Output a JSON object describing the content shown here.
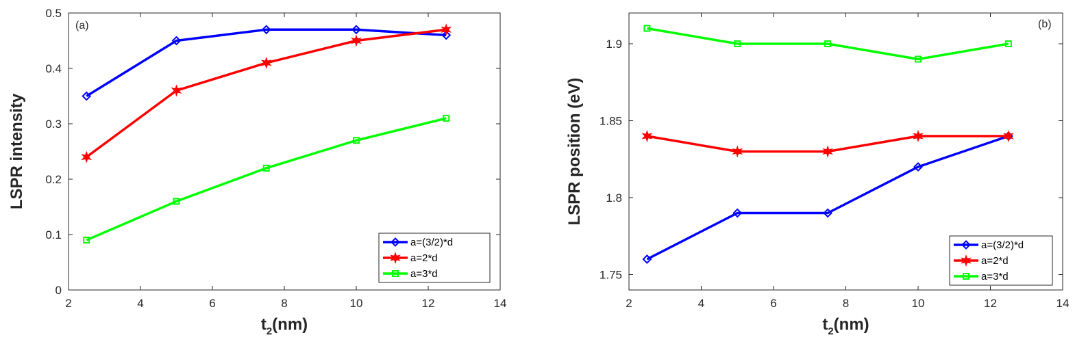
{
  "chart_data": [
    {
      "type": "line",
      "panel_label": "(a)",
      "xlabel_main": "t",
      "xlabel_sub": "2",
      "xlabel_unit": "(nm)",
      "ylabel": "LSPR intensity",
      "xlim": [
        2,
        14
      ],
      "ylim": [
        0,
        0.5
      ],
      "xticks": [
        2,
        4,
        6,
        8,
        10,
        12,
        14
      ],
      "xtick_labels": [
        "2",
        "4",
        "6",
        "8",
        "10",
        "12",
        "14"
      ],
      "yticks": [
        0,
        0.1,
        0.2,
        0.3,
        0.4,
        0.5
      ],
      "ytick_labels": [
        "0",
        "0.1",
        "0.2",
        "0.3",
        "0.4",
        "0.5"
      ],
      "x": [
        2.5,
        5,
        7.5,
        10,
        12.5
      ],
      "legend_position": "bottom-right",
      "series": [
        {
          "name": "a=(3/2)*d",
          "color": "#0000ff",
          "marker": "diamond",
          "values": [
            0.35,
            0.45,
            0.47,
            0.47,
            0.46
          ]
        },
        {
          "name": "a=2*d",
          "color": "#ff0000",
          "marker": "star",
          "values": [
            0.24,
            0.36,
            0.41,
            0.45,
            0.47
          ]
        },
        {
          "name": "a=3*d",
          "color": "#00ff00",
          "marker": "square",
          "values": [
            0.09,
            0.16,
            0.22,
            0.27,
            0.31
          ]
        }
      ]
    },
    {
      "type": "line",
      "panel_label": "(b)",
      "xlabel_main": "t",
      "xlabel_sub": "2",
      "xlabel_unit": "(nm)",
      "ylabel": "LSPR position (eV)",
      "xlim": [
        2,
        14
      ],
      "ylim": [
        1.74,
        1.92
      ],
      "xticks": [
        2,
        4,
        6,
        8,
        10,
        12,
        14
      ],
      "xtick_labels": [
        "2",
        "4",
        "6",
        "8",
        "10",
        "12",
        "14"
      ],
      "yticks": [
        1.75,
        1.8,
        1.85,
        1.9
      ],
      "ytick_labels": [
        "1.75",
        "1.8",
        "1.85",
        "1.9"
      ],
      "x": [
        2.5,
        5,
        7.5,
        10,
        12.5
      ],
      "legend_position": "bottom-right",
      "series": [
        {
          "name": "a=(3/2)*d",
          "color": "#0000ff",
          "marker": "diamond",
          "values": [
            1.76,
            1.79,
            1.79,
            1.82,
            1.84
          ]
        },
        {
          "name": "a=2*d",
          "color": "#ff0000",
          "marker": "star",
          "values": [
            1.84,
            1.83,
            1.83,
            1.84,
            1.84
          ]
        },
        {
          "name": "a=3*d",
          "color": "#00ff00",
          "marker": "square",
          "values": [
            1.91,
            1.9,
            1.9,
            1.89,
            1.9
          ]
        }
      ]
    }
  ]
}
